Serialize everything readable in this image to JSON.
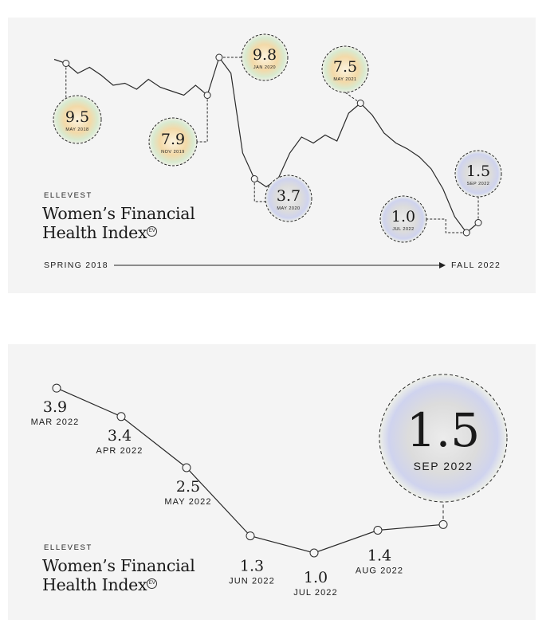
{
  "top": {
    "brand": "ELLEVEST",
    "title_line1": "Women’s Financial",
    "title_line2": "Health Index",
    "trademark": "EV",
    "axis_start": "SPRING 2018",
    "axis_end": "FALL 2022"
  },
  "bottom": {
    "brand": "ELLEVEST",
    "title_line1": "Women’s Financial",
    "title_line2": "Health Index",
    "trademark": "EV"
  },
  "colors": {
    "panel": "#f4f4f4",
    "line": "#2a2a2a",
    "text": "#1a1a1a",
    "bubble_warm": "#f3d9a8",
    "bubble_cool": "#cfd3ee"
  },
  "chart_data": [
    {
      "type": "line",
      "title": "Women’s Financial Health Index",
      "xlabel_start": "SPRING 2018",
      "xlabel_end": "FALL 2022",
      "annotations": [
        {
          "value": "9.5",
          "date": "MAY 2018",
          "tone": "warm"
        },
        {
          "value": "7.9",
          "date": "NOV 2019",
          "tone": "warm"
        },
        {
          "value": "9.8",
          "date": "JAN 2020",
          "tone": "warm"
        },
        {
          "value": "3.7",
          "date": "MAY 2020",
          "tone": "cool"
        },
        {
          "value": "7.5",
          "date": "MAY 2021",
          "tone": "warm"
        },
        {
          "value": "1.0",
          "date": "JUL 2022",
          "tone": "cool"
        },
        {
          "value": "1.5",
          "date": "SEP 2022",
          "tone": "cool"
        }
      ],
      "series_values": [
        9.7,
        9.5,
        9.0,
        9.3,
        8.9,
        8.4,
        8.5,
        8.2,
        8.7,
        8.3,
        8.1,
        7.9,
        8.4,
        7.9,
        9.8,
        9.0,
        5.0,
        3.7,
        3.3,
        3.7,
        5.0,
        5.8,
        5.5,
        5.9,
        5.6,
        7.0,
        7.5,
        6.9,
        6.0,
        5.5,
        5.2,
        4.8,
        4.2,
        3.2,
        1.8,
        1.0,
        1.5
      ]
    },
    {
      "type": "line",
      "title": "Women’s Financial Health Index",
      "categories": [
        "MAR 2022",
        "APR 2022",
        "MAY 2022",
        "JUN 2022",
        "JUL 2022",
        "AUG 2022",
        "SEP 2022"
      ],
      "values": [
        3.9,
        3.4,
        2.5,
        1.3,
        1.0,
        1.4,
        1.5
      ],
      "value_labels": [
        "3.9",
        "3.4",
        "2.5",
        "1.3",
        "1.0",
        "1.4",
        "1.5"
      ],
      "highlight": "SEP 2022"
    }
  ]
}
